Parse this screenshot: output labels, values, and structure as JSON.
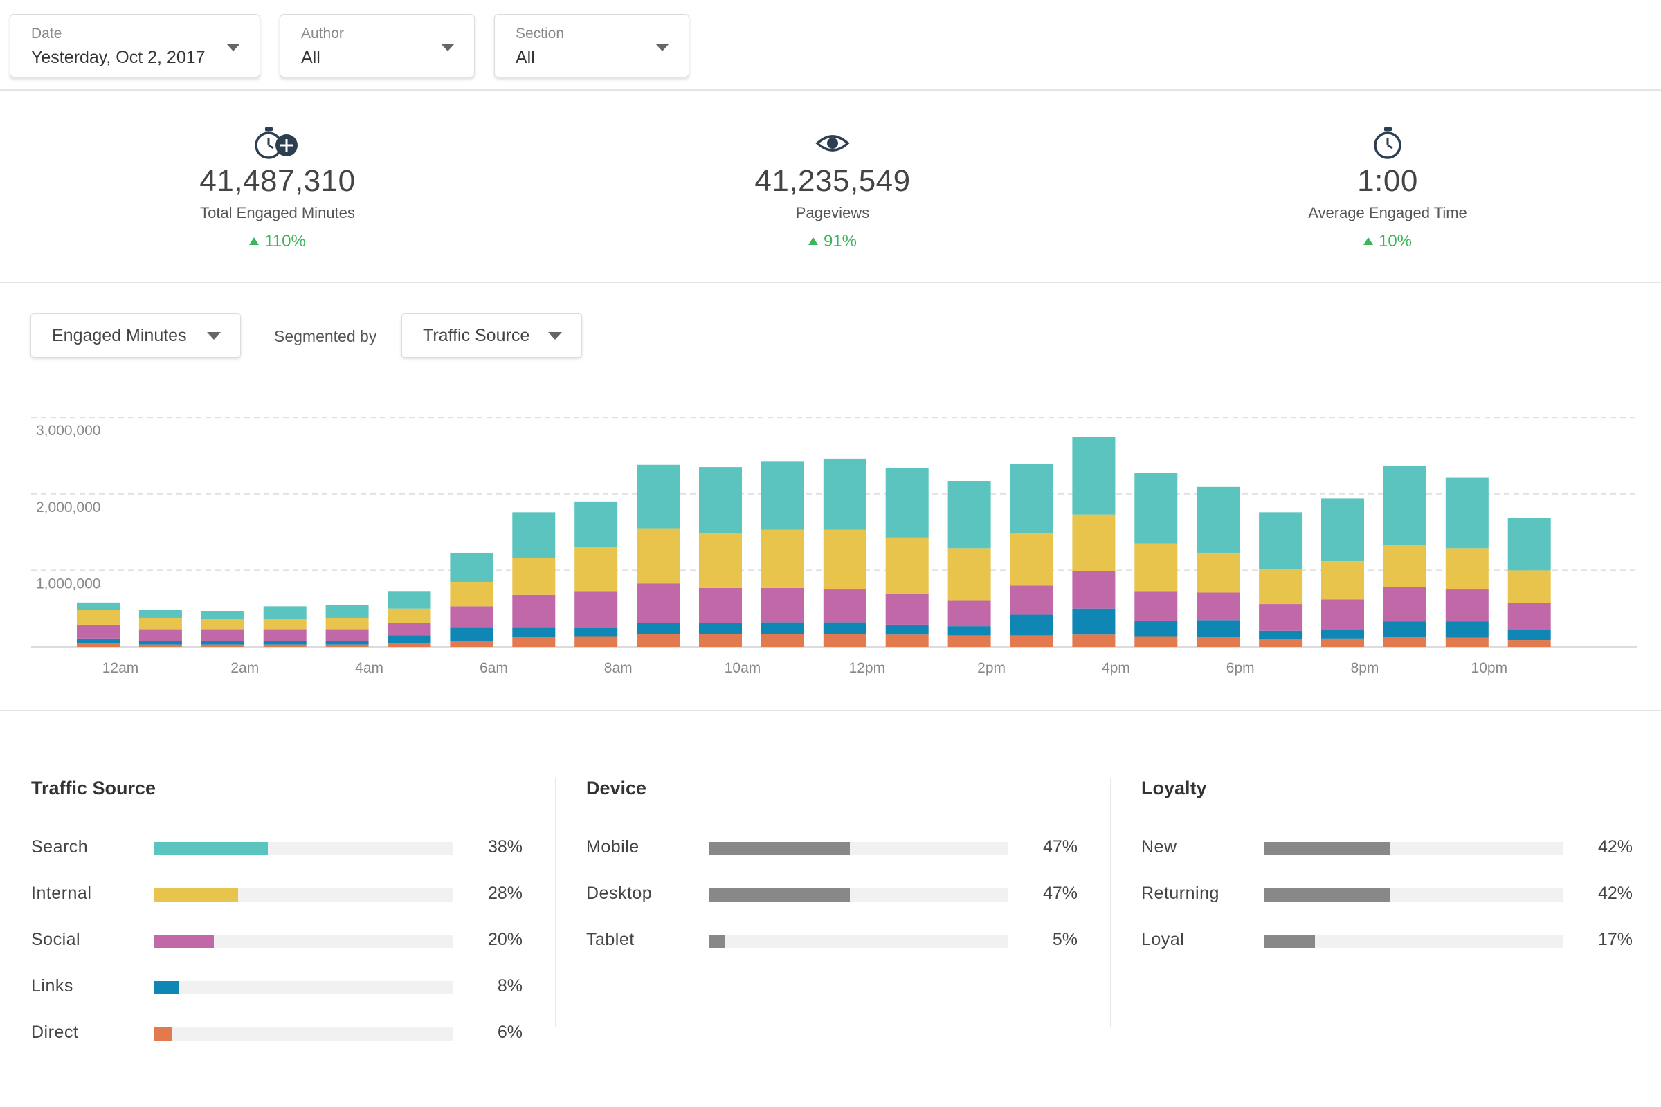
{
  "filters": {
    "date": {
      "label": "Date",
      "value": "Yesterday, Oct 2, 2017"
    },
    "author": {
      "label": "Author",
      "value": "All"
    },
    "section": {
      "label": "Section",
      "value": "All"
    }
  },
  "kpis": [
    {
      "icon": "stopwatch-plus-icon",
      "value": "41,487,310",
      "label": "Total Engaged Minutes",
      "change": "110%"
    },
    {
      "icon": "eye-icon",
      "value": "41,235,549",
      "label": "Pageviews",
      "change": "91%"
    },
    {
      "icon": "stopwatch-icon",
      "value": "1:00",
      "label": "Average Engaged Time",
      "change": "10%"
    }
  ],
  "controls": {
    "metric": "Engaged Minutes",
    "segmented_by_label": "Segmented by",
    "segment": "Traffic Source"
  },
  "colors": {
    "search": "#5bc4bf",
    "internal": "#e9c44c",
    "social": "#c068a8",
    "links": "#0f86b3",
    "direct": "#e37a4f",
    "device_bar": "#888888",
    "track": "#f1f1f1",
    "positive": "#3cb55a"
  },
  "chart_data": {
    "type": "bar",
    "stacked": true,
    "categories": [
      "12am",
      "1am",
      "2am",
      "3am",
      "4am",
      "5am",
      "6am",
      "7am",
      "8am",
      "9am",
      "10am",
      "11am",
      "12pm",
      "1pm",
      "2pm",
      "3pm",
      "4pm",
      "5pm",
      "6pm",
      "7pm",
      "8pm",
      "9pm",
      "10pm",
      "11pm"
    ],
    "tick_labels": [
      "12am",
      "",
      "2am",
      "",
      "4am",
      "",
      "6am",
      "",
      "8am",
      "",
      "10am",
      "",
      "12pm",
      "",
      "2pm",
      "",
      "4pm",
      "",
      "6pm",
      "",
      "8pm",
      "",
      "10pm",
      ""
    ],
    "y_ticks": [
      {
        "value": 1000000,
        "label": "1,000,000"
      },
      {
        "value": 2000000,
        "label": "2,000,000"
      },
      {
        "value": 3000000,
        "label": "3,000,000"
      }
    ],
    "ylim": [
      0,
      3300000
    ],
    "grid": true,
    "series": [
      {
        "key": "direct",
        "values": [
          50000,
          30000,
          30000,
          30000,
          30000,
          50000,
          80000,
          130000,
          140000,
          170000,
          170000,
          170000,
          170000,
          160000,
          150000,
          150000,
          160000,
          140000,
          130000,
          100000,
          110000,
          130000,
          120000,
          90000
        ]
      },
      {
        "key": "links",
        "values": [
          60000,
          50000,
          50000,
          50000,
          50000,
          100000,
          180000,
          130000,
          110000,
          140000,
          140000,
          150000,
          150000,
          130000,
          120000,
          270000,
          340000,
          200000,
          220000,
          110000,
          110000,
          200000,
          210000,
          130000
        ]
      },
      {
        "key": "social",
        "values": [
          180000,
          150000,
          150000,
          150000,
          150000,
          160000,
          270000,
          420000,
          480000,
          520000,
          460000,
          450000,
          430000,
          400000,
          340000,
          380000,
          490000,
          390000,
          360000,
          350000,
          400000,
          450000,
          420000,
          350000
        ]
      },
      {
        "key": "internal",
        "values": [
          190000,
          150000,
          140000,
          140000,
          150000,
          190000,
          320000,
          480000,
          580000,
          720000,
          710000,
          760000,
          780000,
          740000,
          680000,
          690000,
          740000,
          620000,
          520000,
          460000,
          500000,
          550000,
          540000,
          430000
        ]
      },
      {
        "key": "search",
        "values": [
          100000,
          100000,
          100000,
          160000,
          170000,
          230000,
          380000,
          600000,
          590000,
          830000,
          870000,
          890000,
          930000,
          910000,
          880000,
          900000,
          1010000,
          920000,
          860000,
          740000,
          820000,
          1030000,
          920000,
          690000
        ]
      }
    ]
  },
  "breakdowns": {
    "traffic": {
      "title": "Traffic Source",
      "rows": [
        {
          "label": "Search",
          "pct": "38%",
          "value": 38,
          "color": "#5bc4bf"
        },
        {
          "label": "Internal",
          "pct": "28%",
          "value": 28,
          "color": "#e9c44c"
        },
        {
          "label": "Social",
          "pct": "20%",
          "value": 20,
          "color": "#c068a8"
        },
        {
          "label": "Links",
          "pct": "8%",
          "value": 8,
          "color": "#0f86b3"
        },
        {
          "label": "Direct",
          "pct": "6%",
          "value": 6,
          "color": "#e37a4f"
        }
      ]
    },
    "device": {
      "title": "Device",
      "rows": [
        {
          "label": "Mobile",
          "pct": "47%",
          "value": 47,
          "color": "#888888"
        },
        {
          "label": "Desktop",
          "pct": "47%",
          "value": 47,
          "color": "#888888"
        },
        {
          "label": "Tablet",
          "pct": "5%",
          "value": 5,
          "color": "#888888"
        }
      ]
    },
    "loyalty": {
      "title": "Loyalty",
      "rows": [
        {
          "label": "New",
          "pct": "42%",
          "value": 42,
          "color": "#888888"
        },
        {
          "label": "Returning",
          "pct": "42%",
          "value": 42,
          "color": "#888888"
        },
        {
          "label": "Loyal",
          "pct": "17%",
          "value": 17,
          "color": "#888888"
        }
      ]
    }
  }
}
